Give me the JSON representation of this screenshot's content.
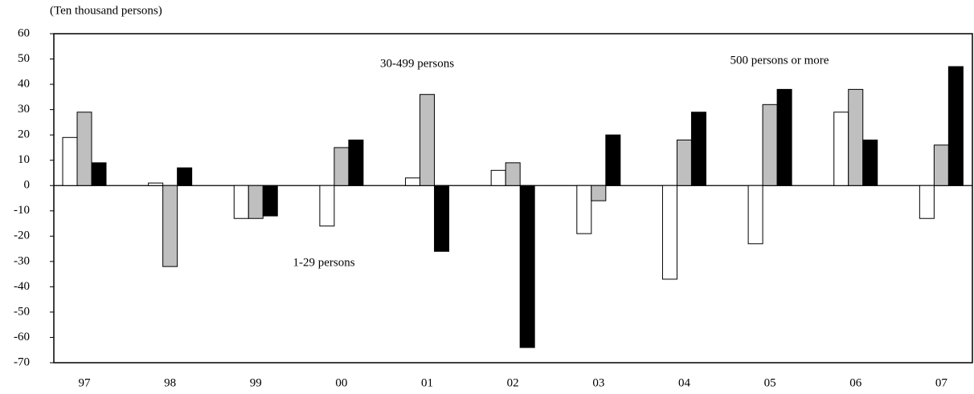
{
  "chart_data": {
    "type": "bar",
    "y_axis_label": "(Ten thousand persons)",
    "categories": [
      "97",
      "98",
      "99",
      "00",
      "01",
      "02",
      "03",
      "04",
      "05",
      "06",
      "07"
    ],
    "series": [
      {
        "name": "1-29 persons",
        "color": "#ffffff",
        "values": [
          19,
          1,
          -13,
          -16,
          3,
          6,
          -19,
          -37,
          -23,
          29,
          -13
        ]
      },
      {
        "name": "30-499 persons",
        "color": "#bfbfbf",
        "values": [
          29,
          -32,
          -13,
          15,
          36,
          9,
          -6,
          18,
          32,
          38,
          16
        ]
      },
      {
        "name": "500 persons or more",
        "color": "#000000",
        "values": [
          9,
          7,
          -12,
          18,
          -26,
          -64,
          20,
          29,
          38,
          18,
          47
        ]
      }
    ],
    "ylim": [
      -70,
      60
    ],
    "yticks": [
      -70,
      -60,
      -50,
      -40,
      -30,
      -20,
      -10,
      0,
      10,
      20,
      30,
      40,
      50,
      60
    ],
    "grid": false
  }
}
